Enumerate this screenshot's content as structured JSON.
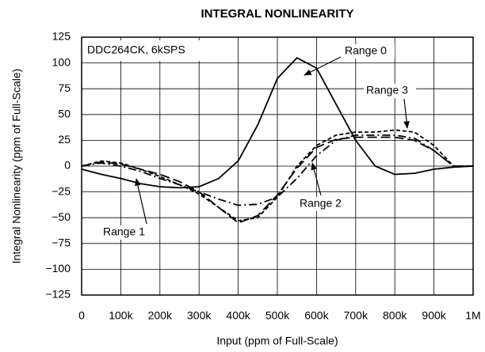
{
  "chart_data": {
    "type": "line",
    "title": "INTEGRAL NONLINEARITY",
    "xlabel": "Input (ppm of Full-Scale)",
    "ylabel": "Integral Nonlinearity (ppm of Full-Scale)",
    "annotation": "DDC264CK, 6kSPS",
    "x": [
      0,
      50000,
      100000,
      150000,
      200000,
      250000,
      300000,
      350000,
      400000,
      450000,
      500000,
      550000,
      600000,
      650000,
      700000,
      750000,
      800000,
      850000,
      900000,
      950000,
      1000000
    ],
    "series": [
      {
        "name": "Range 0",
        "color": "#000000",
        "line_style": "solid",
        "values": [
          -3,
          -8,
          -12,
          -17,
          -20,
          -21,
          -20,
          -12,
          5,
          40,
          85,
          105,
          95,
          60,
          25,
          0,
          -8,
          -7,
          -3,
          -1,
          0
        ]
      },
      {
        "name": "Range 1",
        "color": "#000000",
        "line_style": "long-dash",
        "values": [
          0,
          4,
          2,
          -3,
          -8,
          -15,
          -25,
          -40,
          -55,
          -48,
          -28,
          -2,
          18,
          26,
          28,
          28,
          28,
          25,
          15,
          0,
          0
        ]
      },
      {
        "name": "Range 2",
        "color": "#000000",
        "line_style": "dash-dot",
        "values": [
          0,
          3,
          0,
          -5,
          -12,
          -18,
          -25,
          -32,
          -38,
          -37,
          -30,
          -12,
          10,
          25,
          30,
          30,
          30,
          27,
          15,
          0,
          0
        ]
      },
      {
        "name": "Range 3",
        "color": "#000000",
        "line_style": "short-dash",
        "values": [
          0,
          5,
          3,
          -3,
          -10,
          -18,
          -27,
          -40,
          -53,
          -50,
          -30,
          0,
          20,
          30,
          33,
          33,
          35,
          33,
          20,
          0,
          0
        ]
      }
    ],
    "xlim": [
      0,
      1000000
    ],
    "xticks": [
      0,
      {
        "value": 100000,
        "label": "100k"
      },
      {
        "value": 200000,
        "label": "200k"
      },
      {
        "value": 300000,
        "label": "300k"
      },
      {
        "value": 400000,
        "label": "400k"
      },
      {
        "value": 500000,
        "label": "500k"
      },
      {
        "value": 600000,
        "label": "600k"
      },
      {
        "value": 700000,
        "label": "700k"
      },
      {
        "value": 800000,
        "label": "800k"
      },
      {
        "value": 900000,
        "label": "900k"
      },
      {
        "value": 1000000,
        "label": "1M"
      }
    ],
    "ylim": [
      -125,
      125
    ],
    "yticks": [
      {
        "value": -125,
        "label": "−125"
      },
      {
        "value": -100,
        "label": "−100"
      },
      {
        "value": -75,
        "label": "−75"
      },
      {
        "value": -50,
        "label": "−50"
      },
      {
        "value": -25,
        "label": "−25"
      },
      0,
      25,
      50,
      75,
      100,
      125
    ],
    "grid": true
  }
}
